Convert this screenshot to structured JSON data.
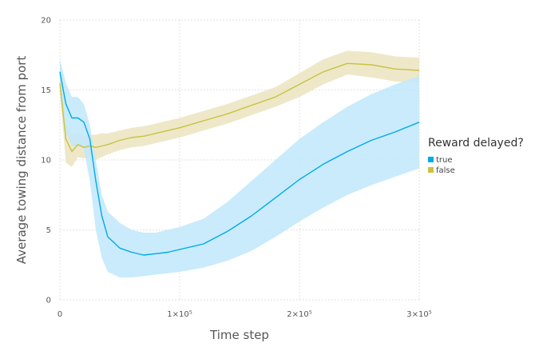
{
  "chart_data": {
    "type": "line",
    "xlabel": "Time step",
    "ylabel": "Average towing distance from port",
    "xlim": [
      0,
      300000
    ],
    "ylim": [
      0,
      20
    ],
    "x_ticks": [
      0,
      100000,
      200000,
      300000
    ],
    "x_tick_labels": [
      "0",
      "1×10⁵",
      "2×10⁵",
      "3×10⁵"
    ],
    "y_ticks": [
      0,
      5,
      10,
      15,
      20
    ],
    "y_tick_labels": [
      "0",
      "5",
      "10",
      "15",
      "20"
    ],
    "grid": true,
    "legend": {
      "title": "Reward delayed?",
      "placement": "right"
    },
    "x": [
      0,
      5000,
      10000,
      15000,
      20000,
      25000,
      30000,
      35000,
      40000,
      50000,
      60000,
      70000,
      80000,
      90000,
      100000,
      120000,
      140000,
      160000,
      180000,
      200000,
      220000,
      240000,
      260000,
      280000,
      300000
    ],
    "series": [
      {
        "name": "true",
        "color": "#00a9e8",
        "band_color": "#bfe8fb",
        "values": [
          16.3,
          14.0,
          13.0,
          13.0,
          12.7,
          11.5,
          8.5,
          6.0,
          4.5,
          3.7,
          3.4,
          3.2,
          3.3,
          3.4,
          3.6,
          4.0,
          4.9,
          6.0,
          7.3,
          8.6,
          9.7,
          10.6,
          11.4,
          12.0,
          12.7
        ],
        "lower": [
          15.5,
          12.0,
          11.0,
          11.0,
          10.8,
          8.5,
          5.0,
          3.0,
          2.0,
          1.6,
          1.6,
          1.7,
          1.8,
          1.9,
          2.0,
          2.3,
          2.8,
          3.5,
          4.5,
          5.6,
          6.6,
          7.5,
          8.2,
          8.8,
          9.4
        ],
        "upper": [
          17.2,
          15.5,
          14.5,
          14.5,
          14.0,
          12.5,
          10.0,
          7.5,
          6.3,
          5.5,
          5.0,
          4.8,
          4.8,
          5.0,
          5.2,
          5.8,
          7.0,
          8.5,
          10.0,
          11.5,
          12.7,
          13.8,
          14.7,
          15.4,
          16.0
        ]
      },
      {
        "name": "false",
        "color": "#c9c240",
        "band_color": "#ebe4bf",
        "values": [
          15.5,
          11.5,
          10.6,
          11.1,
          10.9,
          11.0,
          10.9,
          11.0,
          11.1,
          11.4,
          11.6,
          11.7,
          11.9,
          12.1,
          12.3,
          12.8,
          13.3,
          13.9,
          14.5,
          15.4,
          16.3,
          16.9,
          16.8,
          16.5,
          16.4
        ],
        "lower": [
          14.8,
          9.8,
          9.5,
          10.2,
          10.1,
          10.2,
          10.0,
          10.2,
          10.4,
          10.7,
          10.9,
          11.0,
          11.2,
          11.4,
          11.6,
          12.1,
          12.6,
          13.2,
          13.8,
          14.5,
          15.4,
          16.1,
          15.9,
          15.6,
          15.5
        ],
        "upper": [
          16.2,
          12.6,
          11.8,
          12.0,
          11.7,
          11.8,
          11.8,
          11.9,
          11.9,
          12.1,
          12.3,
          12.4,
          12.6,
          12.8,
          13.0,
          13.5,
          14.0,
          14.6,
          15.2,
          16.2,
          17.2,
          17.8,
          17.7,
          17.4,
          17.3
        ]
      }
    ]
  }
}
